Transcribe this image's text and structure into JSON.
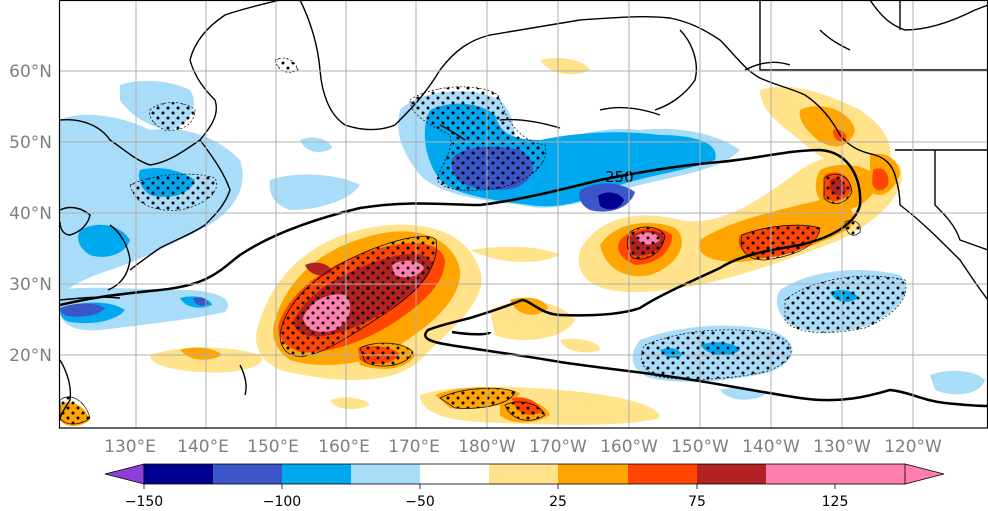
{
  "map": {
    "lat_labels": [
      "60°N",
      "50°N",
      "40°N",
      "30°N",
      "20°N"
    ],
    "lon_labels": [
      "130°E",
      "140°E",
      "150°E",
      "160°E",
      "170°E",
      "180°W",
      "170°W",
      "160°W",
      "150°W",
      "140°W",
      "130°W",
      "120°W"
    ],
    "contour_label": "250",
    "stippling": "dots"
  },
  "colorbar": {
    "colors": [
      "#8c3fd6",
      "#000090",
      "#3a56c8",
      "#00a8f0",
      "#a8dcf8",
      "#ffffff",
      "#ffe28a",
      "#ffa500",
      "#ff4500",
      "#b22222",
      "#ff7fb0"
    ],
    "tick_labels": [
      "−150",
      "−100",
      "−50",
      "25",
      "75",
      "125"
    ]
  }
}
